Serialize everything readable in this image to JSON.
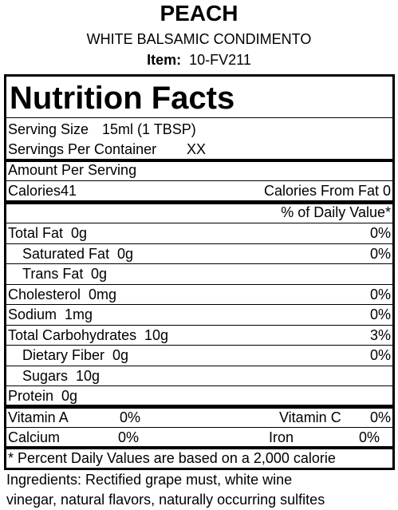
{
  "header": {
    "title": "PEACH",
    "subtitle": "WHITE BALSAMIC CONDIMENTO",
    "item_label": "Item:",
    "item_value": "10-FV211"
  },
  "nutrition_facts": {
    "title": "Nutrition Facts",
    "serving_size": {
      "label": "Serving Size",
      "value": "15ml (1 TBSP)"
    },
    "servings_per_container": {
      "label": "Servings Per Container",
      "value": "XX"
    },
    "amount_per_serving": "Amount Per Serving",
    "calories": {
      "label": "Calories",
      "value": "41"
    },
    "calories_from_fat": {
      "label": "Calories From Fat",
      "value": "0"
    },
    "daily_value_header": "% of Daily Value*",
    "nutrients": [
      {
        "name": "Total Fat",
        "amount": "0g",
        "dv": "0%"
      },
      {
        "name": "Saturated Fat",
        "amount": "0g",
        "dv": "0%",
        "indent": true
      },
      {
        "name": "Trans Fat",
        "amount": "0g",
        "indent": true
      },
      {
        "name": "Cholesterol",
        "amount": "0mg",
        "dv": "0%"
      },
      {
        "name": "Sodium",
        "amount": "1mg",
        "dv": "0%"
      },
      {
        "name": "Total Carbohydrates",
        "amount": "10g",
        "dv": "3%"
      },
      {
        "name": "Dietary Fiber",
        "amount": "0g",
        "dv": "0%",
        "indent": true
      },
      {
        "name": "Sugars",
        "amount": "10g",
        "indent": true
      },
      {
        "name": "Protein",
        "amount": "0g"
      }
    ],
    "vitamins": [
      [
        {
          "name": "Vitamin A",
          "dv": "0%"
        },
        {
          "name": "Vitamin C",
          "dv": "0%"
        }
      ],
      [
        {
          "name": "Calcium",
          "dv": "0%"
        },
        {
          "name": "Iron",
          "dv": "0%"
        }
      ]
    ],
    "footnote": "* Percent Daily Values are based on a 2,000 calorie"
  },
  "ingredients": [
    "Ingredients: Rectified grape must, white wine",
    "vinegar, natural flavors, naturally occurring sulfites"
  ]
}
